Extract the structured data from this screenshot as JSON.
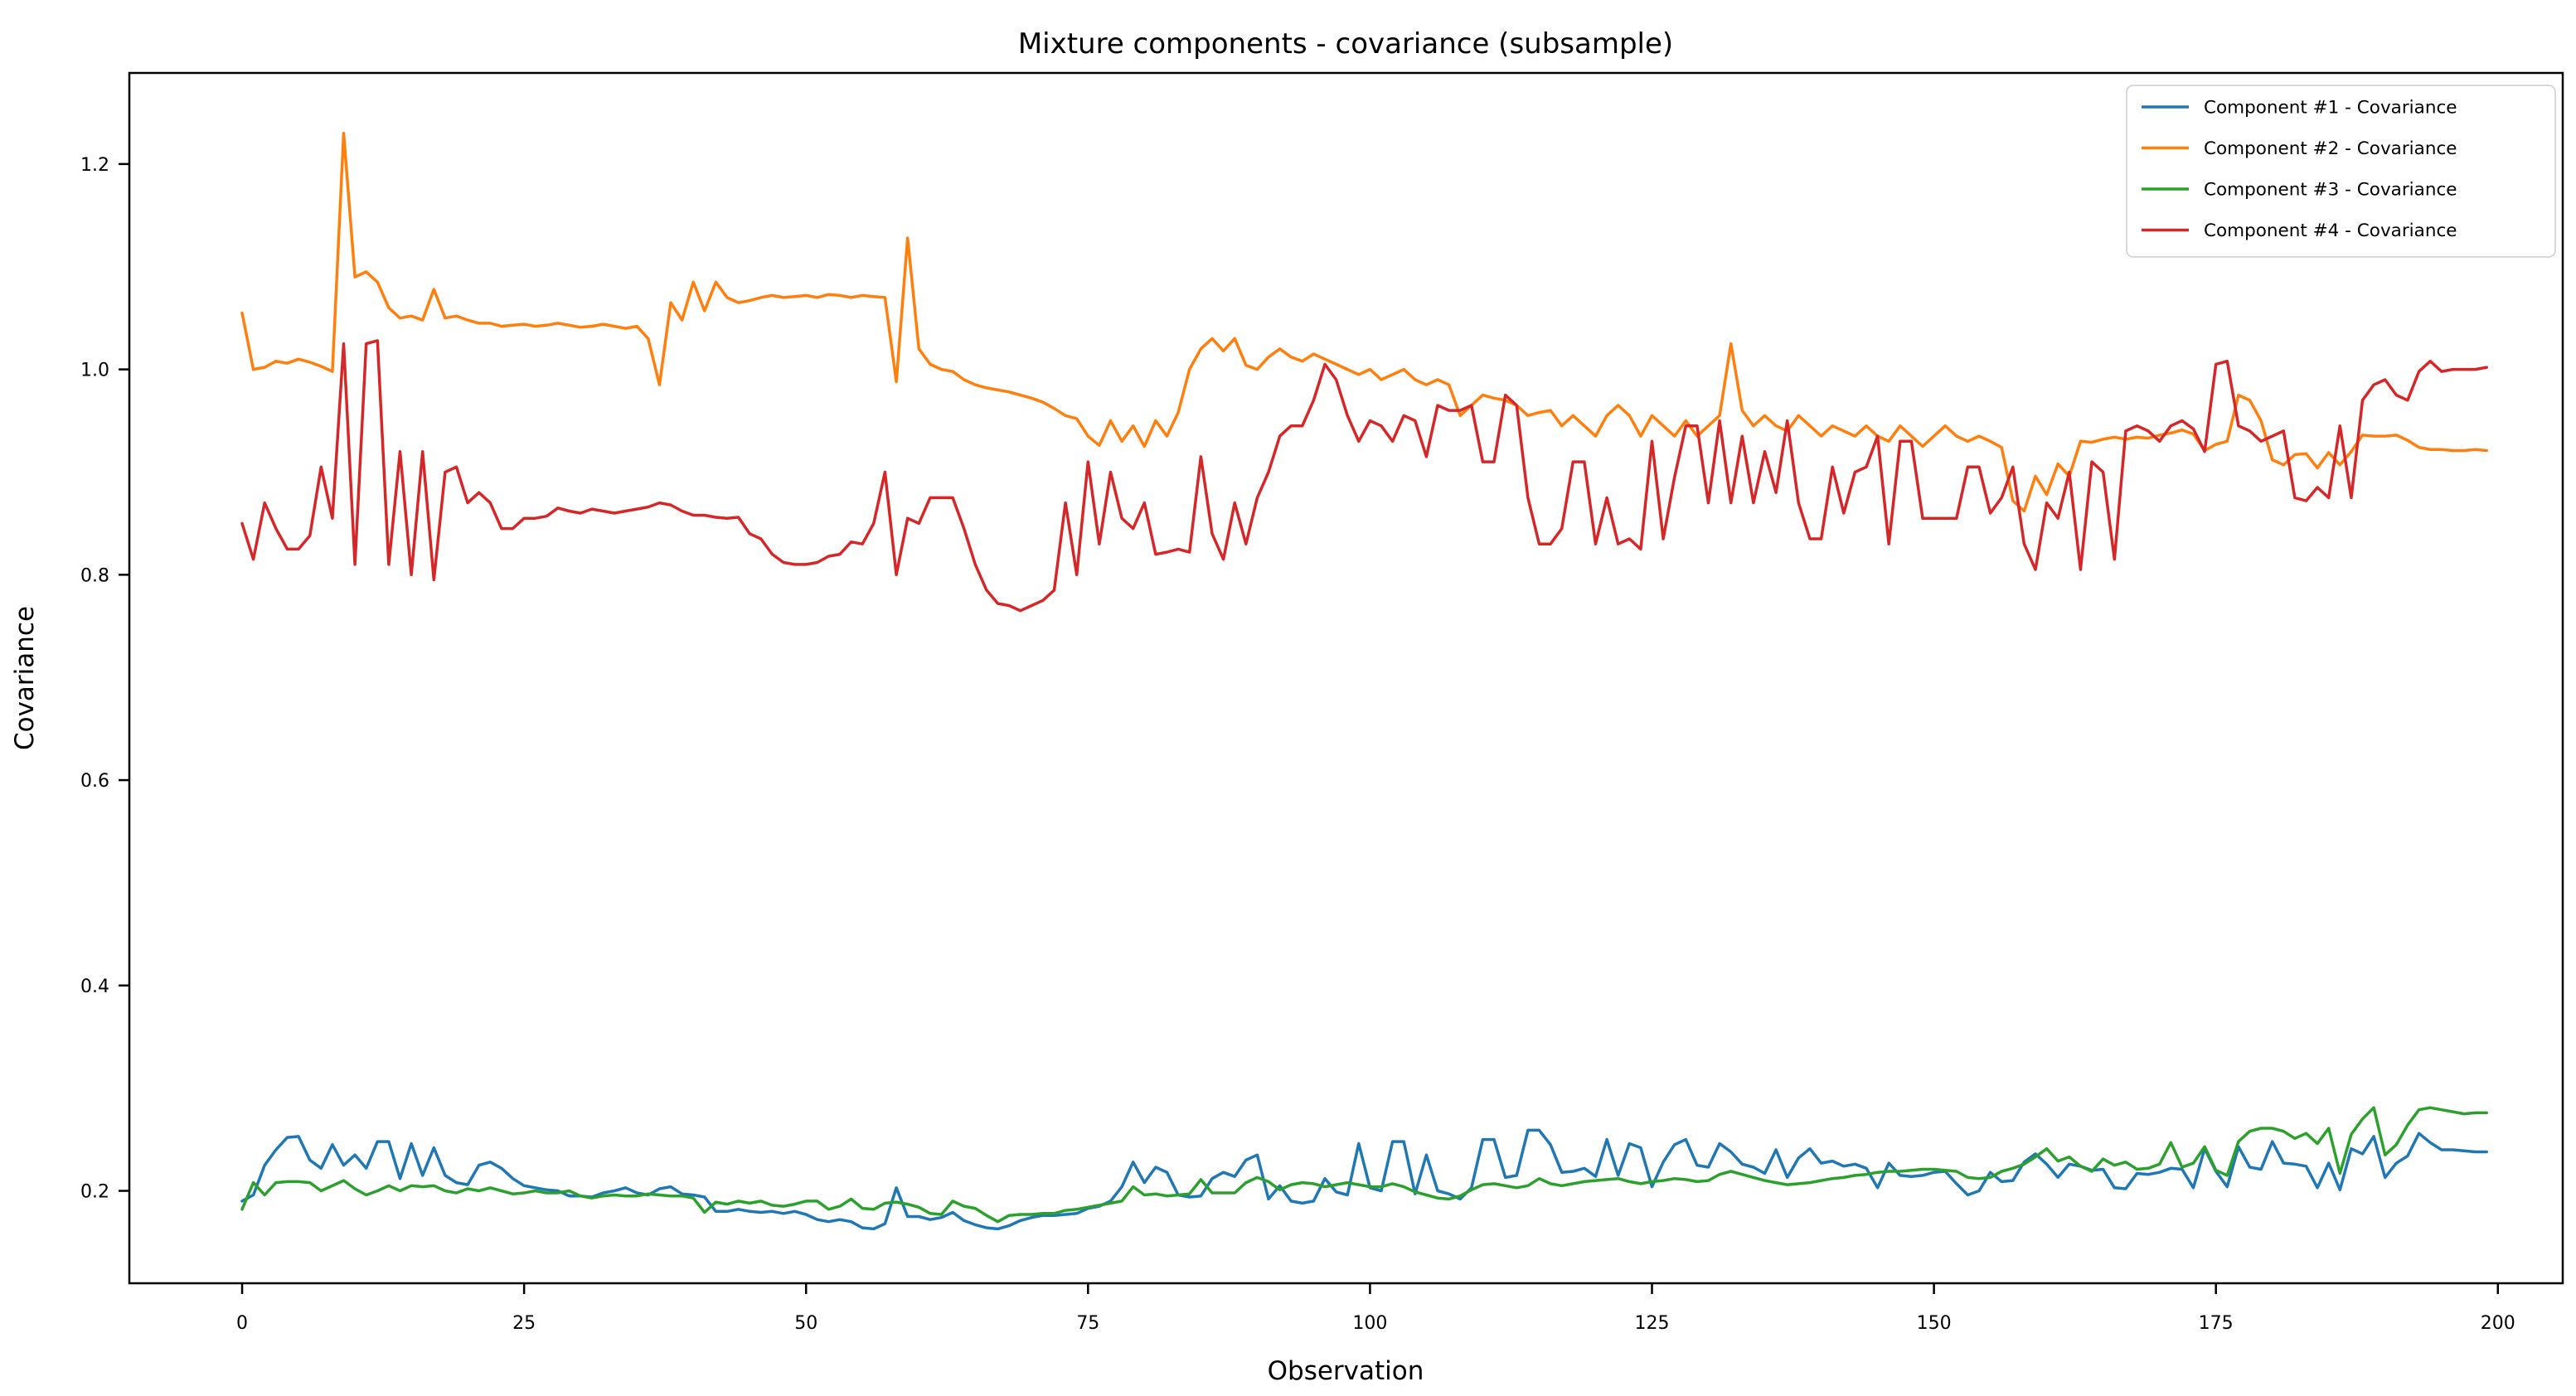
{
  "chart_data": {
    "type": "line",
    "title": "Mixture components - covariance (subsample)",
    "xlabel": "Observation",
    "ylabel": "Covariance",
    "x_start": 0,
    "x_step": 1,
    "n_points": 200,
    "xlim": [
      -10,
      205.75
    ],
    "ylim": [
      0.11,
      1.2887
    ],
    "grid": false,
    "legend_position": "upper right",
    "xticks": [
      "0",
      "25",
      "50",
      "75",
      "100",
      "125",
      "150",
      "175",
      "200"
    ],
    "xtick_values": [
      0,
      25,
      50,
      75,
      100,
      125,
      150,
      175,
      200
    ],
    "yticks": [
      "0.2",
      "0.4",
      "0.6",
      "0.8",
      "1.0",
      "1.2"
    ],
    "ytick_values": [
      0.2,
      0.4,
      0.6,
      0.8,
      1.0,
      1.2
    ],
    "series": [
      {
        "name": "Component #1 - Covariance",
        "color": "#1f77b4",
        "values": [
          0.19,
          0.196,
          0.225,
          0.24,
          0.252,
          0.253,
          0.23,
          0.222,
          0.245,
          0.225,
          0.235,
          0.222,
          0.248,
          0.248,
          0.212,
          0.246,
          0.215,
          0.242,
          0.215,
          0.208,
          0.206,
          0.225,
          0.228,
          0.222,
          0.212,
          0.205,
          0.203,
          0.201,
          0.2,
          0.195,
          0.195,
          0.194,
          0.198,
          0.2,
          0.203,
          0.198,
          0.196,
          0.202,
          0.204,
          0.197,
          0.196,
          0.194,
          0.18,
          0.18,
          0.182,
          0.18,
          0.179,
          0.18,
          0.178,
          0.18,
          0.177,
          0.172,
          0.17,
          0.172,
          0.17,
          0.164,
          0.163,
          0.168,
          0.203,
          0.175,
          0.175,
          0.172,
          0.174,
          0.179,
          0.171,
          0.167,
          0.164,
          0.163,
          0.166,
          0.171,
          0.174,
          0.176,
          0.176,
          0.177,
          0.178,
          0.183,
          0.185,
          0.19,
          0.204,
          0.228,
          0.208,
          0.223,
          0.218,
          0.196,
          0.194,
          0.195,
          0.212,
          0.218,
          0.214,
          0.23,
          0.235,
          0.192,
          0.205,
          0.19,
          0.188,
          0.19,
          0.212,
          0.199,
          0.196,
          0.246,
          0.203,
          0.2,
          0.248,
          0.248,
          0.197,
          0.235,
          0.2,
          0.197,
          0.192,
          0.203,
          0.25,
          0.25,
          0.213,
          0.215,
          0.259,
          0.259,
          0.245,
          0.218,
          0.219,
          0.222,
          0.214,
          0.25,
          0.215,
          0.246,
          0.242,
          0.204,
          0.228,
          0.245,
          0.25,
          0.225,
          0.223,
          0.246,
          0.238,
          0.226,
          0.223,
          0.217,
          0.24,
          0.213,
          0.232,
          0.241,
          0.227,
          0.229,
          0.224,
          0.226,
          0.222,
          0.203,
          0.227,
          0.215,
          0.214,
          0.215,
          0.218,
          0.219,
          0.207,
          0.196,
          0.2,
          0.218,
          0.209,
          0.21,
          0.228,
          0.236,
          0.226,
          0.213,
          0.226,
          0.224,
          0.22,
          0.221,
          0.203,
          0.202,
          0.217,
          0.216,
          0.218,
          0.222,
          0.221,
          0.203,
          0.241,
          0.219,
          0.204,
          0.243,
          0.223,
          0.221,
          0.248,
          0.227,
          0.226,
          0.224,
          0.203,
          0.227,
          0.201,
          0.241,
          0.236,
          0.253,
          0.213,
          0.227,
          0.234,
          0.256,
          0.247,
          0.24,
          0.24,
          0.239,
          0.238,
          0.238
        ]
      },
      {
        "name": "Component #2 - Covariance",
        "color": "#ff7f0e",
        "values": [
          1.055,
          1.0,
          1.002,
          1.008,
          1.006,
          1.01,
          1.007,
          1.003,
          0.998,
          1.23,
          1.09,
          1.095,
          1.085,
          1.06,
          1.05,
          1.052,
          1.048,
          1.078,
          1.05,
          1.052,
          1.048,
          1.045,
          1.045,
          1.042,
          1.043,
          1.044,
          1.042,
          1.043,
          1.045,
          1.043,
          1.041,
          1.042,
          1.044,
          1.042,
          1.04,
          1.042,
          1.03,
          0.985,
          1.065,
          1.048,
          1.085,
          1.057,
          1.085,
          1.07,
          1.065,
          1.067,
          1.07,
          1.072,
          1.07,
          1.071,
          1.072,
          1.07,
          1.073,
          1.072,
          1.07,
          1.072,
          1.071,
          1.07,
          0.988,
          1.128,
          1.02,
          1.005,
          1.0,
          0.998,
          0.99,
          0.985,
          0.982,
          0.98,
          0.978,
          0.975,
          0.972,
          0.968,
          0.962,
          0.955,
          0.952,
          0.935,
          0.926,
          0.95,
          0.93,
          0.945,
          0.925,
          0.95,
          0.935,
          0.958,
          1.0,
          1.02,
          1.03,
          1.018,
          1.03,
          1.004,
          1.0,
          1.012,
          1.02,
          1.012,
          1.008,
          1.015,
          1.01,
          1.005,
          1.0,
          0.995,
          1.0,
          0.99,
          0.995,
          1.0,
          0.99,
          0.985,
          0.99,
          0.985,
          0.955,
          0.965,
          0.975,
          0.972,
          0.97,
          0.965,
          0.955,
          0.958,
          0.96,
          0.945,
          0.955,
          0.945,
          0.935,
          0.955,
          0.965,
          0.955,
          0.935,
          0.955,
          0.945,
          0.935,
          0.95,
          0.935,
          0.945,
          0.955,
          1.025,
          0.96,
          0.945,
          0.955,
          0.945,
          0.94,
          0.955,
          0.945,
          0.935,
          0.945,
          0.94,
          0.935,
          0.945,
          0.935,
          0.93,
          0.945,
          0.935,
          0.925,
          0.935,
          0.945,
          0.935,
          0.93,
          0.935,
          0.93,
          0.924,
          0.872,
          0.862,
          0.896,
          0.878,
          0.908,
          0.896,
          0.93,
          0.929,
          0.932,
          0.934,
          0.932,
          0.934,
          0.933,
          0.936,
          0.938,
          0.941,
          0.937,
          0.921,
          0.927,
          0.93,
          0.975,
          0.97,
          0.95,
          0.912,
          0.907,
          0.917,
          0.918,
          0.904,
          0.919,
          0.907,
          0.92,
          0.936,
          0.935,
          0.935,
          0.936,
          0.931,
          0.924,
          0.922,
          0.922,
          0.921,
          0.921,
          0.922,
          0.921
        ]
      },
      {
        "name": "Component #3 - Covariance",
        "color": "#2ca02c",
        "values": [
          0.182,
          0.208,
          0.196,
          0.208,
          0.209,
          0.209,
          0.208,
          0.2,
          0.205,
          0.21,
          0.202,
          0.196,
          0.2,
          0.205,
          0.2,
          0.205,
          0.204,
          0.205,
          0.2,
          0.198,
          0.202,
          0.2,
          0.203,
          0.2,
          0.197,
          0.198,
          0.2,
          0.198,
          0.198,
          0.2,
          0.195,
          0.193,
          0.195,
          0.196,
          0.195,
          0.195,
          0.197,
          0.196,
          0.195,
          0.195,
          0.193,
          0.179,
          0.189,
          0.187,
          0.19,
          0.188,
          0.19,
          0.186,
          0.185,
          0.187,
          0.19,
          0.19,
          0.182,
          0.185,
          0.192,
          0.183,
          0.182,
          0.188,
          0.189,
          0.187,
          0.184,
          0.178,
          0.177,
          0.19,
          0.185,
          0.183,
          0.176,
          0.17,
          0.176,
          0.177,
          0.177,
          0.178,
          0.178,
          0.181,
          0.182,
          0.184,
          0.186,
          0.188,
          0.19,
          0.204,
          0.196,
          0.197,
          0.195,
          0.196,
          0.197,
          0.211,
          0.198,
          0.198,
          0.198,
          0.208,
          0.213,
          0.209,
          0.201,
          0.206,
          0.208,
          0.207,
          0.204,
          0.206,
          0.208,
          0.206,
          0.204,
          0.204,
          0.207,
          0.204,
          0.199,
          0.196,
          0.193,
          0.192,
          0.195,
          0.201,
          0.206,
          0.207,
          0.205,
          0.203,
          0.205,
          0.212,
          0.207,
          0.205,
          0.207,
          0.209,
          0.21,
          0.211,
          0.212,
          0.209,
          0.207,
          0.209,
          0.21,
          0.212,
          0.211,
          0.209,
          0.21,
          0.216,
          0.219,
          0.216,
          0.213,
          0.21,
          0.208,
          0.206,
          0.207,
          0.208,
          0.21,
          0.212,
          0.213,
          0.215,
          0.216,
          0.218,
          0.219,
          0.219,
          0.22,
          0.221,
          0.221,
          0.22,
          0.219,
          0.213,
          0.212,
          0.213,
          0.219,
          0.222,
          0.226,
          0.233,
          0.241,
          0.229,
          0.233,
          0.224,
          0.219,
          0.231,
          0.225,
          0.228,
          0.221,
          0.222,
          0.226,
          0.247,
          0.223,
          0.227,
          0.243,
          0.22,
          0.215,
          0.248,
          0.258,
          0.261,
          0.261,
          0.258,
          0.251,
          0.256,
          0.246,
          0.261,
          0.217,
          0.255,
          0.27,
          0.281,
          0.235,
          0.245,
          0.264,
          0.279,
          0.281,
          0.279,
          0.277,
          0.275,
          0.276,
          0.276
        ]
      },
      {
        "name": "Component #4 - Covariance",
        "color": "#d62728",
        "values": [
          0.85,
          0.815,
          0.87,
          0.845,
          0.825,
          0.825,
          0.838,
          0.905,
          0.855,
          1.025,
          0.81,
          1.025,
          1.028,
          0.81,
          0.92,
          0.8,
          0.92,
          0.795,
          0.9,
          0.905,
          0.87,
          0.88,
          0.87,
          0.845,
          0.845,
          0.855,
          0.855,
          0.857,
          0.865,
          0.862,
          0.86,
          0.864,
          0.862,
          0.86,
          0.862,
          0.864,
          0.866,
          0.87,
          0.868,
          0.862,
          0.858,
          0.858,
          0.856,
          0.855,
          0.856,
          0.84,
          0.835,
          0.82,
          0.812,
          0.81,
          0.81,
          0.812,
          0.818,
          0.82,
          0.832,
          0.83,
          0.85,
          0.9,
          0.8,
          0.855,
          0.85,
          0.875,
          0.875,
          0.875,
          0.845,
          0.81,
          0.785,
          0.772,
          0.77,
          0.765,
          0.77,
          0.775,
          0.785,
          0.87,
          0.8,
          0.91,
          0.83,
          0.9,
          0.855,
          0.845,
          0.87,
          0.82,
          0.822,
          0.825,
          0.822,
          0.915,
          0.84,
          0.815,
          0.87,
          0.83,
          0.875,
          0.9,
          0.935,
          0.945,
          0.945,
          0.97,
          1.005,
          0.99,
          0.955,
          0.93,
          0.95,
          0.945,
          0.93,
          0.955,
          0.95,
          0.915,
          0.965,
          0.96,
          0.96,
          0.965,
          0.91,
          0.91,
          0.975,
          0.965,
          0.875,
          0.83,
          0.83,
          0.845,
          0.91,
          0.91,
          0.83,
          0.875,
          0.83,
          0.835,
          0.825,
          0.93,
          0.835,
          0.895,
          0.945,
          0.945,
          0.87,
          0.95,
          0.87,
          0.935,
          0.87,
          0.92,
          0.88,
          0.95,
          0.87,
          0.835,
          0.835,
          0.905,
          0.86,
          0.9,
          0.905,
          0.935,
          0.83,
          0.93,
          0.93,
          0.855,
          0.855,
          0.855,
          0.855,
          0.905,
          0.905,
          0.86,
          0.875,
          0.905,
          0.83,
          0.805,
          0.87,
          0.855,
          0.9,
          0.805,
          0.91,
          0.9,
          0.815,
          0.94,
          0.945,
          0.94,
          0.93,
          0.945,
          0.95,
          0.942,
          0.92,
          1.005,
          1.008,
          0.945,
          0.94,
          0.93,
          0.935,
          0.94,
          0.875,
          0.872,
          0.885,
          0.875,
          0.945,
          0.875,
          0.97,
          0.985,
          0.99,
          0.975,
          0.97,
          0.998,
          1.008,
          0.998,
          1.0,
          1.0,
          1.0,
          1.002
        ]
      }
    ],
    "legend_entries": [
      "Component #1 - Covariance",
      "Component #2 - Covariance",
      "Component #3 - Covariance",
      "Component #4 - Covariance"
    ]
  },
  "colors": {
    "spine": "#000000",
    "legend_border": "#cccccc",
    "background": "#ffffff"
  }
}
